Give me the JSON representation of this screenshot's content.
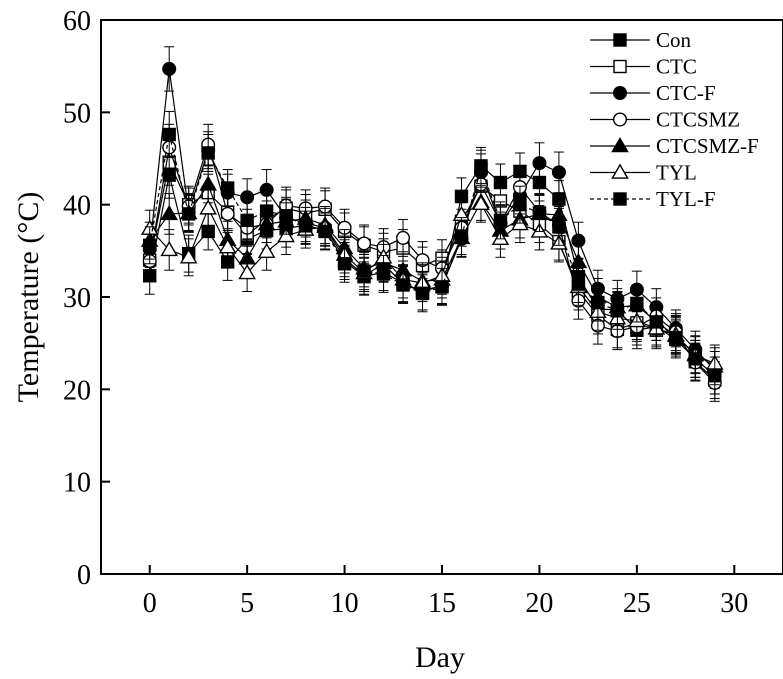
{
  "chart_data": {
    "type": "line",
    "xlabel": "Day",
    "ylabel": "Temperature (°C)",
    "xlim": [
      -2.5,
      32.5
    ],
    "ylim": [
      0,
      60
    ],
    "x_ticks": [
      0,
      5,
      10,
      15,
      20,
      25,
      30
    ],
    "y_ticks": [
      0,
      10,
      20,
      30,
      40,
      50,
      60
    ],
    "legend_position": "top-right",
    "error_bars": true,
    "x": [
      0,
      1,
      2,
      3,
      4,
      5,
      6,
      7,
      8,
      9,
      10,
      11,
      12,
      13,
      14,
      15,
      16,
      17,
      18,
      19,
      20,
      21,
      22,
      23,
      24,
      25,
      26,
      27,
      28,
      29
    ],
    "series": [
      {
        "name": "Con",
        "marker": "square-filled",
        "line": "solid",
        "values": [
          32.3,
          43.2,
          34.7,
          37.1,
          33.8,
          36.3,
          37.2,
          37.4,
          37.8,
          37.2,
          33.9,
          32.2,
          32.7,
          31.5,
          30.6,
          31.3,
          40.9,
          44.2,
          42.4,
          43.6,
          42.4,
          40.6,
          32.2,
          28.7,
          28.6,
          26.4,
          26.8,
          25.4,
          23.3,
          21.5
        ],
        "errors": [
          2.0,
          2.5,
          2.0,
          2.0,
          2.0,
          2.0,
          2.0,
          2.0,
          2.0,
          2.0,
          2.0,
          2.0,
          2.0,
          2.0,
          2.0,
          2.0,
          2.0,
          2.0,
          2.0,
          2.0,
          2.0,
          2.0,
          2.0,
          2.0,
          2.0,
          2.0,
          2.0,
          2.0,
          2.0,
          2.0
        ]
      },
      {
        "name": "CTC",
        "marker": "square-open",
        "line": "solid",
        "values": [
          34.0,
          44.6,
          40.0,
          41.3,
          39.2,
          36.7,
          38.4,
          39.6,
          39.1,
          39.5,
          37.1,
          35.6,
          34.9,
          35.3,
          33.4,
          34.2,
          38.2,
          42.0,
          40.4,
          39.3,
          37.9,
          36.0,
          30.6,
          28.0,
          26.5,
          27.2,
          26.4,
          26.0,
          23.0,
          21.0
        ],
        "errors": [
          2.0,
          2.5,
          2.0,
          2.0,
          2.0,
          2.0,
          2.0,
          2.0,
          2.0,
          2.0,
          2.0,
          2.0,
          2.0,
          2.0,
          2.0,
          2.0,
          2.0,
          2.0,
          2.0,
          2.0,
          2.0,
          2.0,
          2.0,
          2.0,
          2.0,
          2.0,
          2.0,
          2.0,
          2.0,
          2.0
        ]
      },
      {
        "name": "CTC-F",
        "marker": "circle-filled",
        "line": "solid",
        "values": [
          35.2,
          54.7,
          39.2,
          45.9,
          41.3,
          40.8,
          41.6,
          38.6,
          38.0,
          37.5,
          34.2,
          32.3,
          33.6,
          31.4,
          30.6,
          31.2,
          36.3,
          43.5,
          37.9,
          41.0,
          44.5,
          43.5,
          36.1,
          30.9,
          29.8,
          30.8,
          28.9,
          26.6,
          24.3,
          22.1
        ],
        "errors": [
          2.0,
          2.4,
          2.0,
          2.0,
          2.0,
          2.0,
          2.2,
          2.0,
          2.0,
          2.0,
          2.0,
          2.0,
          2.0,
          2.0,
          2.0,
          2.0,
          2.0,
          2.0,
          2.0,
          2.0,
          2.2,
          2.2,
          2.0,
          2.0,
          2.0,
          2.0,
          2.0,
          2.0,
          2.0,
          2.0
        ]
      },
      {
        "name": "CTCSMZ",
        "marker": "circle-open",
        "line": "solid",
        "values": [
          33.9,
          46.2,
          39.8,
          46.5,
          39.0,
          37.5,
          37.9,
          39.9,
          39.6,
          39.8,
          37.5,
          35.8,
          35.4,
          36.4,
          34.0,
          33.1,
          37.5,
          42.2,
          38.0,
          41.9,
          39.2,
          37.8,
          29.6,
          26.9,
          26.3,
          26.8,
          27.9,
          26.2,
          22.9,
          20.7
        ],
        "errors": [
          2.0,
          2.5,
          2.0,
          2.2,
          2.0,
          2.0,
          2.0,
          2.0,
          2.0,
          2.0,
          2.0,
          2.0,
          2.0,
          2.0,
          2.0,
          2.0,
          2.0,
          2.0,
          2.0,
          2.0,
          2.0,
          2.0,
          2.0,
          2.0,
          2.0,
          2.0,
          2.0,
          2.0,
          2.0,
          2.0
        ]
      },
      {
        "name": "CTCSMZ-F",
        "marker": "triangle-filled",
        "line": "solid",
        "values": [
          36.1,
          39.0,
          39.1,
          42.2,
          36.2,
          34.2,
          37.9,
          38.2,
          38.5,
          37.8,
          35.3,
          33.1,
          33.7,
          32.9,
          31.7,
          31.9,
          36.4,
          40.3,
          37.2,
          38.4,
          39.0,
          38.9,
          33.8,
          30.0,
          28.9,
          29.1,
          27.3,
          25.8,
          23.8,
          22.5
        ],
        "errors": [
          2.0,
          2.2,
          2.0,
          2.0,
          2.0,
          2.0,
          2.0,
          2.0,
          2.0,
          2.0,
          2.0,
          2.0,
          2.0,
          2.0,
          2.0,
          2.0,
          2.0,
          2.0,
          2.0,
          2.0,
          2.0,
          2.0,
          2.0,
          2.0,
          2.0,
          2.0,
          2.0,
          2.0,
          2.0,
          2.0
        ]
      },
      {
        "name": "TYL",
        "marker": "triangle-open",
        "line": "solid",
        "values": [
          37.4,
          35.1,
          34.3,
          39.6,
          35.4,
          32.6,
          34.9,
          36.6,
          37.3,
          37.6,
          34.6,
          32.6,
          34.3,
          31.9,
          31.5,
          32.3,
          38.9,
          40.1,
          36.3,
          37.9,
          37.1,
          35.8,
          31.1,
          28.4,
          27.7,
          27.4,
          26.6,
          25.9,
          23.7,
          22.8
        ],
        "errors": [
          2.0,
          2.2,
          2.0,
          2.0,
          2.0,
          2.0,
          2.0,
          2.0,
          2.0,
          2.0,
          2.0,
          2.0,
          2.0,
          2.0,
          2.0,
          2.0,
          2.0,
          2.0,
          2.0,
          2.0,
          2.0,
          2.0,
          2.0,
          2.0,
          2.0,
          2.0,
          2.0,
          2.0,
          2.0,
          2.0
        ]
      },
      {
        "name": "TYL-F",
        "marker": "square-filled",
        "line": "dashed",
        "values": [
          35.6,
          47.6,
          39.0,
          45.6,
          41.8,
          38.3,
          39.3,
          38.8,
          37.7,
          37.1,
          33.6,
          32.8,
          32.5,
          31.3,
          30.4,
          31.1,
          36.6,
          43.9,
          38.3,
          40.0,
          39.1,
          37.6,
          31.4,
          29.4,
          28.5,
          29.3,
          27.3,
          25.6,
          23.3,
          21.5
        ],
        "errors": [
          2.0,
          2.5,
          2.0,
          2.0,
          2.0,
          2.0,
          2.0,
          2.0,
          2.0,
          2.0,
          2.0,
          2.0,
          2.0,
          2.0,
          2.0,
          2.0,
          2.0,
          2.0,
          2.0,
          2.0,
          2.0,
          2.0,
          2.0,
          2.0,
          2.0,
          2.0,
          2.0,
          2.0,
          2.0,
          2.0
        ]
      }
    ]
  }
}
